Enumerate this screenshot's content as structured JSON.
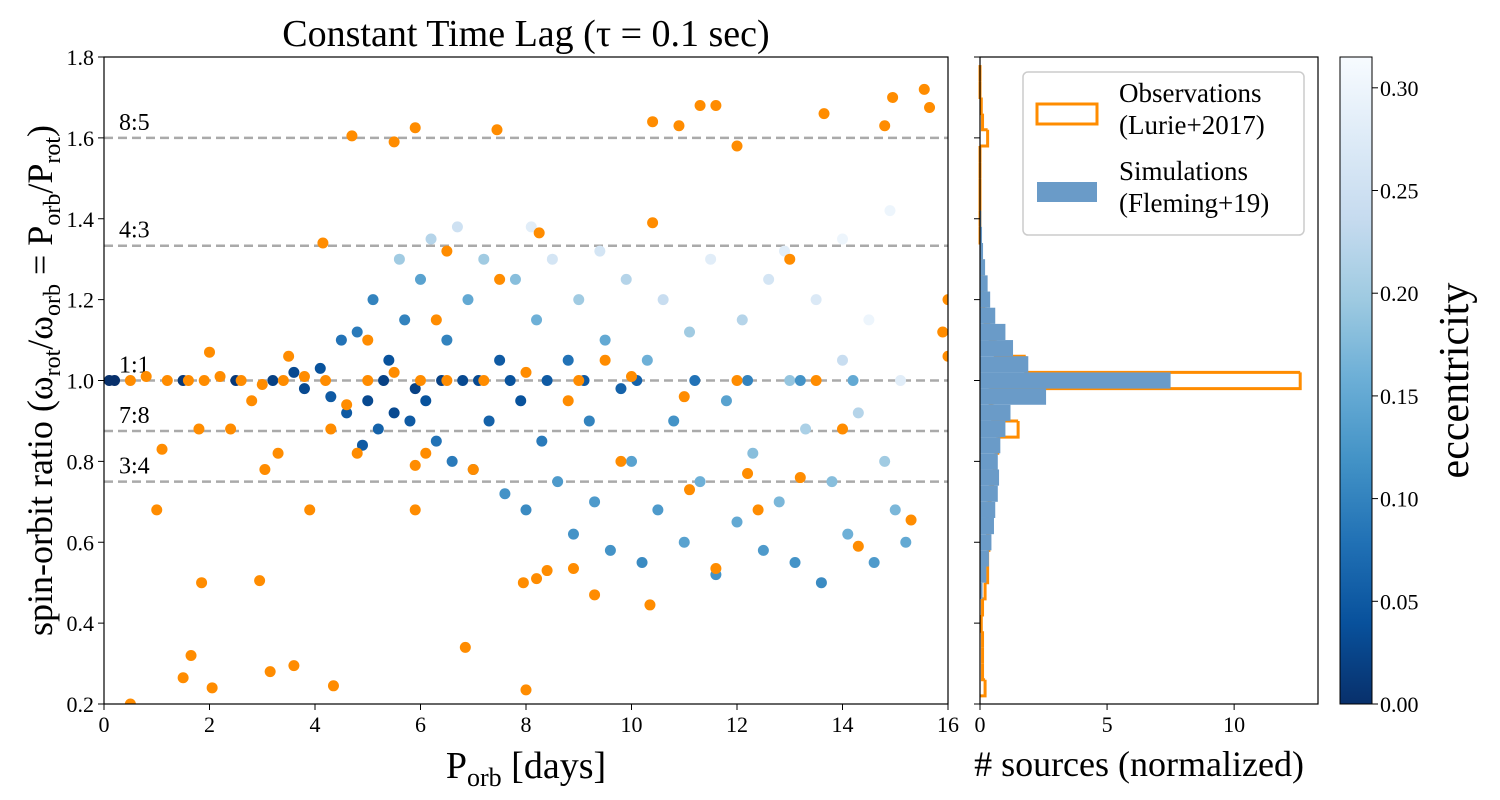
{
  "chart_data": [
    {
      "type": "scatter",
      "title": "Constant Time Lag (τ = 0.1 sec)",
      "x_label": [
        "P",
        "orb",
        " [days]"
      ],
      "y_label": [
        "spin-orbit ratio (ω",
        "rot",
        "/ω",
        "orb",
        " = P",
        "orb",
        "/P",
        "rot",
        ")"
      ],
      "xlim": [
        0,
        16
      ],
      "ylim": [
        0.2,
        1.8
      ],
      "xticks": [
        0,
        2,
        4,
        6,
        8,
        10,
        12,
        14,
        16
      ],
      "yticks": [
        0.2,
        0.4,
        0.6,
        0.8,
        {
          "value": 1,
          "label": "1.0"
        },
        1.2,
        1.4,
        1.6,
        1.8
      ],
      "resonances": [
        {
          "label": "8:5",
          "value": 1.6
        },
        {
          "label": "4:3",
          "value": 1.3333
        },
        {
          "label": "1:1",
          "value": 1
        },
        {
          "label": "7:8",
          "value": 0.875
        },
        {
          "label": "3:4",
          "value": 0.75
        }
      ],
      "resonance_color": "#aaaaaa",
      "series": [
        {
          "x": [
            0.1,
            0.2,
            1.5,
            2.5,
            3.2,
            3.6,
            3.8,
            4.1,
            4.3,
            4.5,
            4.6,
            4.8,
            5.0,
            5.1,
            5.2,
            5.4,
            5.5,
            5.6,
            5.7,
            5.8,
            6.0,
            6.1,
            6.2,
            6.3,
            6.5,
            6.6,
            6.8,
            6.9,
            7.0,
            7.2,
            7.3,
            7.5,
            7.6,
            7.8,
            7.9,
            8.0,
            8.2,
            8.3,
            8.5,
            8.6,
            8.8,
            8.9,
            9.0,
            9.2,
            9.3,
            9.5,
            9.6,
            9.8,
            9.9,
            10.0,
            10.2,
            10.3,
            10.5,
            10.6,
            10.8,
            11.0,
            11.1,
            11.3,
            11.5,
            11.6,
            11.8,
            12.0,
            12.1,
            12.3,
            12.5,
            12.6,
            12.8,
            13.0,
            13.1,
            13.3,
            13.5,
            13.6,
            13.8,
            14.0,
            14.1,
            14.3,
            14.5,
            14.6,
            14.8,
            14.9,
            15.0,
            15.1,
            15.2,
            5.3,
            5.9,
            6.4,
            7.1,
            7.7,
            8.4,
            9.1,
            10.1,
            11.2,
            12.2,
            13.2,
            14.2,
            4.9,
            6.7,
            8.1,
            9.4,
            12.9,
            14.0
          ],
          "y": [
            1.0,
            1.0,
            1.0,
            1.0,
            1.0,
            1.02,
            0.98,
            1.03,
            0.96,
            1.1,
            0.92,
            1.12,
            0.95,
            1.2,
            0.88,
            1.05,
            0.92,
            1.3,
            1.15,
            0.9,
            1.25,
            0.95,
            1.35,
            0.85,
            1.1,
            0.8,
            1.0,
            1.2,
            0.78,
            1.3,
            0.9,
            1.05,
            0.72,
            1.25,
            0.95,
            0.68,
            1.15,
            0.85,
            1.3,
            0.75,
            1.05,
            0.62,
            1.2,
            0.9,
            0.7,
            1.1,
            0.58,
            0.98,
            1.25,
            0.8,
            0.55,
            1.05,
            0.68,
            1.2,
            0.9,
            0.6,
            1.12,
            0.75,
            1.3,
            0.52,
            0.95,
            0.65,
            1.15,
            0.82,
            0.58,
            1.25,
            0.7,
            1.0,
            0.55,
            0.88,
            1.2,
            0.5,
            0.75,
            1.05,
            0.62,
            0.92,
            1.15,
            0.55,
            0.8,
            1.42,
            0.68,
            1.0,
            0.6,
            1.0,
            0.98,
            1.0,
            1.0,
            1.0,
            1.0,
            1.0,
            1.0,
            1.0,
            1.0,
            1.0,
            1.0,
            0.84,
            1.38,
            1.38,
            1.32,
            1.32,
            1.35
          ],
          "c": [
            0.0,
            0.0,
            0.01,
            0.01,
            0.02,
            0.03,
            0.03,
            0.04,
            0.05,
            0.08,
            0.05,
            0.09,
            0.03,
            0.1,
            0.06,
            0.04,
            0.03,
            0.2,
            0.1,
            0.05,
            0.14,
            0.04,
            0.22,
            0.08,
            0.1,
            0.09,
            0.03,
            0.15,
            0.1,
            0.2,
            0.06,
            0.05,
            0.12,
            0.18,
            0.04,
            0.11,
            0.16,
            0.09,
            0.26,
            0.13,
            0.08,
            0.12,
            0.2,
            0.1,
            0.13,
            0.15,
            0.12,
            0.06,
            0.22,
            0.14,
            0.11,
            0.16,
            0.13,
            0.24,
            0.12,
            0.14,
            0.2,
            0.16,
            0.28,
            0.12,
            0.14,
            0.15,
            0.22,
            0.18,
            0.13,
            0.26,
            0.17,
            0.19,
            0.12,
            0.21,
            0.27,
            0.11,
            0.18,
            0.24,
            0.16,
            0.22,
            0.3,
            0.13,
            0.2,
            0.3,
            0.17,
            0.28,
            0.15,
            0.02,
            0.02,
            0.02,
            0.03,
            0.04,
            0.05,
            0.05,
            0.06,
            0.08,
            0.1,
            0.12,
            0.15,
            0.05,
            0.25,
            0.28,
            0.26,
            0.28,
            0.3
          ]
        },
        {
          "color": "#ff8c00",
          "x": [
            0.5,
            1.0,
            1.1,
            1.5,
            1.65,
            1.85,
            2.05,
            2.95,
            3.15,
            3.6,
            4.35,
            3.05,
            3.3,
            3.9,
            4.15,
            4.7,
            5.5,
            5.9,
            6.5,
            7.45,
            6.85,
            8.0,
            7.95,
            8.2,
            8.4,
            8.9,
            9.3,
            10.35,
            8.25,
            10.4,
            10.4,
            10.9,
            11.3,
            11.6,
            12.0,
            13.0,
            13.65,
            14.8,
            14.95,
            15.55,
            15.65,
            16.0,
            15.9,
            16.0,
            15.3,
            14.3,
            11.6,
            12.2,
            12.4,
            13.2,
            14.0,
            11.0,
            11.1,
            9.8,
            9.5,
            8.8,
            7.0,
            7.5,
            5.9,
            5.9,
            6.1,
            4.8,
            4.6,
            4.3,
            2.4,
            1.8,
            2.8,
            1.9,
            0.5,
            0.8,
            1.2,
            1.6,
            2.2,
            2.6,
            3.0,
            3.4,
            3.8,
            4.2,
            5.0,
            5.5,
            6.0,
            6.5,
            7.2,
            8.0,
            9.0,
            10.0,
            12.0,
            13.5,
            2.0,
            3.5,
            5.0,
            6.3
          ],
          "y": [
            0.2,
            0.68,
            0.83,
            0.265,
            0.32,
            0.5,
            0.24,
            0.505,
            0.28,
            0.295,
            0.245,
            0.78,
            0.82,
            0.68,
            1.34,
            1.605,
            1.59,
            1.625,
            1.32,
            1.62,
            0.34,
            0.235,
            0.5,
            0.51,
            0.53,
            0.535,
            0.47,
            0.445,
            1.365,
            1.39,
            1.64,
            1.63,
            1.68,
            1.68,
            1.58,
            1.3,
            1.66,
            1.63,
            1.7,
            1.72,
            1.675,
            1.2,
            1.12,
            1.06,
            0.655,
            0.59,
            0.535,
            0.77,
            0.68,
            0.76,
            0.88,
            0.96,
            0.73,
            0.8,
            1.05,
            0.95,
            0.78,
            1.25,
            0.68,
            0.79,
            0.82,
            0.82,
            0.94,
            0.88,
            0.88,
            0.88,
            0.95,
            1.0,
            1.0,
            1.01,
            1.0,
            1.0,
            1.01,
            1.0,
            0.99,
            1.0,
            1.01,
            1.0,
            1.0,
            1.02,
            1.0,
            1.0,
            1.0,
            1.02,
            1.0,
            1.01,
            1.0,
            1.0,
            1.07,
            1.06,
            1.1,
            1.15
          ]
        }
      ],
      "colorbar": {
        "label": "eccentricity",
        "lim": [
          0,
          0.315
        ],
        "ticks": [
          {
            "value": 0,
            "label": "0.00"
          },
          {
            "value": 0.05,
            "label": "0.05"
          },
          {
            "value": 0.1,
            "label": "0.10"
          },
          {
            "value": 0.15,
            "label": "0.15"
          },
          {
            "value": 0.2,
            "label": "0.20"
          },
          {
            "value": 0.25,
            "label": "0.25"
          },
          {
            "value": 0.3,
            "label": "0.30"
          }
        ],
        "colormap": [
          "#08306b",
          "#08519c",
          "#2171b5",
          "#4292c6",
          "#6baed6",
          "#9ecae1",
          "#c6dbef",
          "#deebf7",
          "#f7fbff"
        ]
      }
    },
    {
      "type": "histogram",
      "orientation": "horizontal",
      "x_label": "# sources (normalized)",
      "xlim": [
        0,
        13.3
      ],
      "xticks": [
        0,
        5,
        10
      ],
      "legend": "upper right",
      "bins": [
        0.22,
        0.26,
        0.3,
        0.34,
        0.38,
        0.42,
        0.46,
        0.5,
        0.54,
        0.58,
        0.62,
        0.66,
        0.7,
        0.74,
        0.78,
        0.82,
        0.86,
        0.9,
        0.94,
        0.98,
        1.02,
        1.06,
        1.1,
        1.14,
        1.18,
        1.22,
        1.26,
        1.3,
        1.34,
        1.38,
        1.42,
        1.46,
        1.5,
        1.54,
        1.58,
        1.62,
        1.66,
        1.7,
        1.74,
        1.78
      ],
      "series": [
        {
          "name": [
            "Observations",
            "(Lurie+2017)"
          ],
          "color": "#ff8c00",
          "fill": false,
          "values": [
            0.2,
            0.1,
            0.1,
            0.1,
            0.05,
            0.1,
            0.2,
            0.3,
            0.3,
            0.35,
            0.3,
            0.3,
            0.4,
            0.5,
            0.6,
            0.7,
            1.5,
            0.5,
            0.4,
            12.6,
            1.8,
            0.6,
            0.4,
            0.2,
            0.1,
            0.1,
            0.05,
            0.05,
            0,
            0,
            0,
            0,
            0,
            0,
            0.3,
            0.1,
            0.05,
            0,
            0
          ]
        },
        {
          "name": [
            "Simulations",
            "(Fleming+19)"
          ],
          "color": "#6a9bc8",
          "fill": true,
          "values": [
            0,
            0,
            0,
            0,
            0,
            0.02,
            0.1,
            0.25,
            0.35,
            0.45,
            0.55,
            0.6,
            0.7,
            0.75,
            0.7,
            0.8,
            1.0,
            1.2,
            2.6,
            7.5,
            1.9,
            1.3,
            1.0,
            0.6,
            0.4,
            0.3,
            0.2,
            0.12,
            0.08,
            0.05,
            0.02,
            0,
            0,
            0,
            0,
            0,
            0,
            0,
            0
          ]
        }
      ]
    }
  ]
}
